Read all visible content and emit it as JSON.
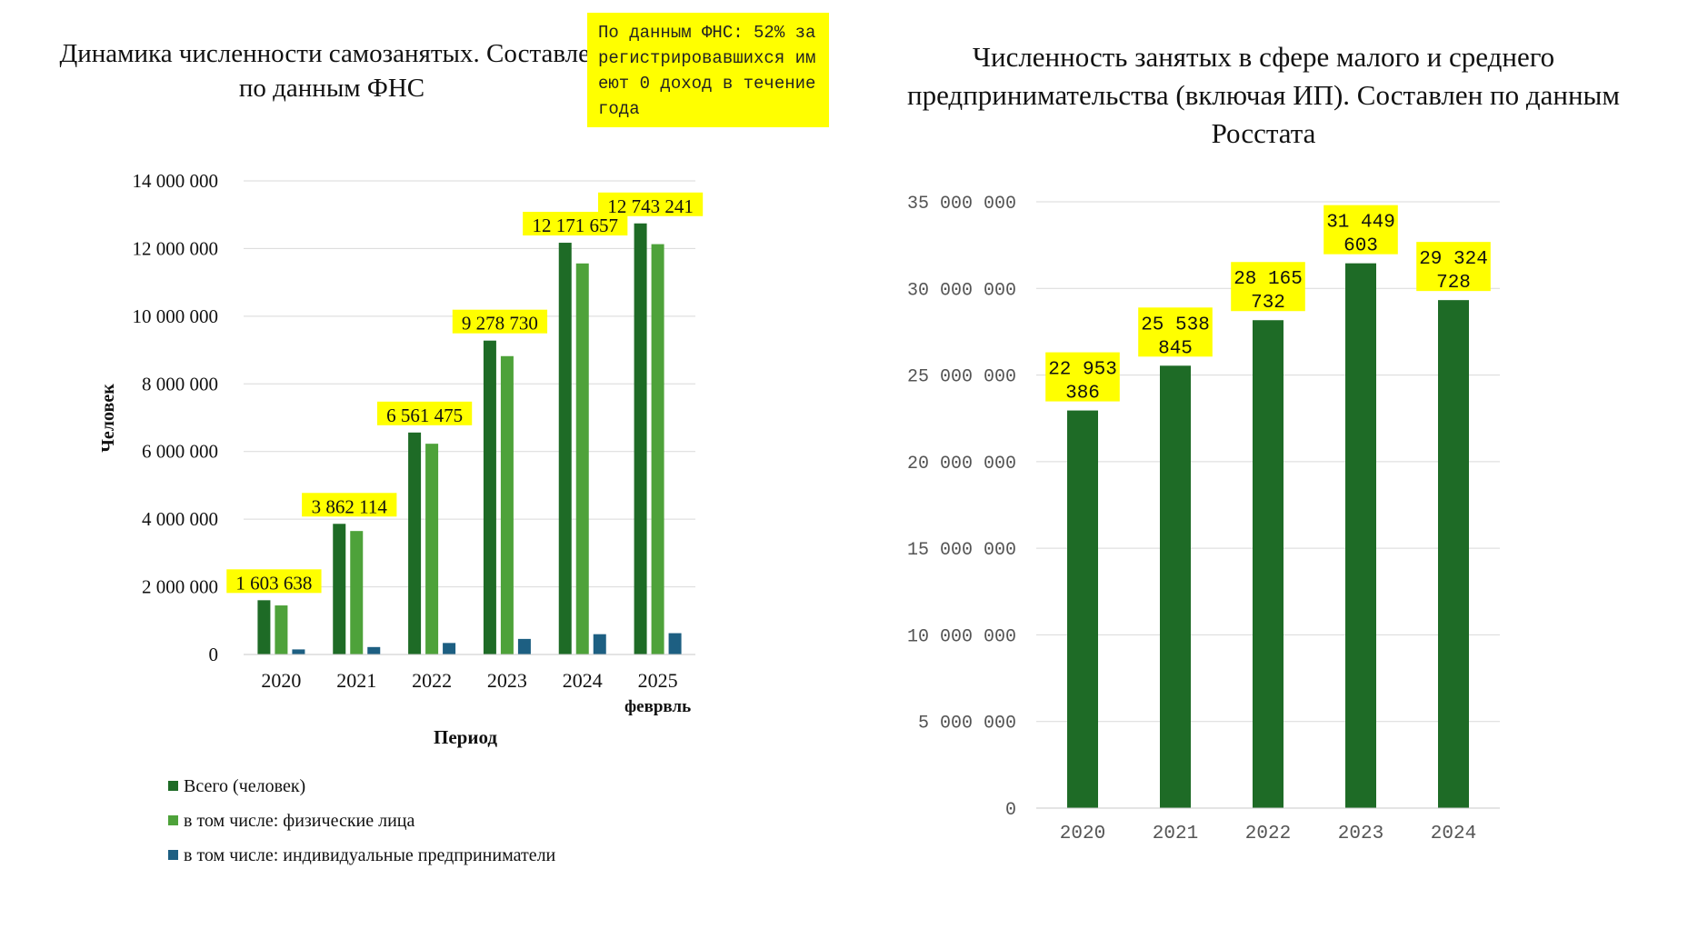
{
  "left_chart": {
    "title": "Динамика численности самозанятых. Составлен по данным ФНС",
    "note": "По данным ФНС: 52% зарегистрировавшихся имеют 0 доход в течение года",
    "chart_data": {
      "type": "bar",
      "categories": [
        "2020",
        "2021",
        "2022",
        "2023",
        "2024",
        "2025\nфеврвль"
      ],
      "ylabel": "Человек",
      "xlabel": "Период",
      "ylim": [
        0,
        14000000
      ],
      "yticks": [
        "0",
        "2 000 000",
        "4 000 000",
        "6 000 000",
        "8 000 000",
        "10 000 000",
        "12 000 000",
        "14 000 000"
      ],
      "series": [
        {
          "name": "Всего (человек)",
          "color": "#1e6b26",
          "values": [
            1603638,
            3862114,
            6561475,
            9278730,
            12171657,
            12743241
          ],
          "labels": [
            "1 603 638",
            "3 862 114",
            "6 561 475",
            "9 278 730",
            "12 171 657",
            "12 743 241"
          ]
        },
        {
          "name": "в том числе: физические лица",
          "color": "#4ea23a",
          "values": [
            1450000,
            3650000,
            6230000,
            8820000,
            11560000,
            12130000
          ]
        },
        {
          "name": "в том числе: индивидуальные предприниматели",
          "color": "#1d5f82",
          "values": [
            150000,
            220000,
            340000,
            460000,
            600000,
            630000
          ]
        }
      ],
      "grid": true,
      "legend": "bottom-left",
      "label_bg": "#ffff00"
    }
  },
  "right_chart": {
    "title": "Численность занятых в сфере малого и среднего предпринимательства (включая ИП). Составлен по данным Росстата",
    "chart_data": {
      "type": "bar",
      "categories": [
        "2020",
        "2021",
        "2022",
        "2023",
        "2024"
      ],
      "ylim": [
        0,
        35000000
      ],
      "yticks": [
        "0",
        "5 000 000",
        "10 000 000",
        "15 000 000",
        "20 000 000",
        "25 000 000",
        "30 000 000",
        "35 000 000"
      ],
      "series": [
        {
          "color": "#1e6b26",
          "values": [
            22953386,
            25538845,
            28165732,
            31449603,
            29324728
          ],
          "labels": [
            [
              "22 953",
              "386"
            ],
            [
              "25 538",
              "845"
            ],
            [
              "28 165",
              "732"
            ],
            [
              "31 449",
              "603"
            ],
            [
              "29 324",
              "728"
            ]
          ]
        }
      ],
      "grid": true,
      "label_bg": "#ffff00"
    }
  }
}
